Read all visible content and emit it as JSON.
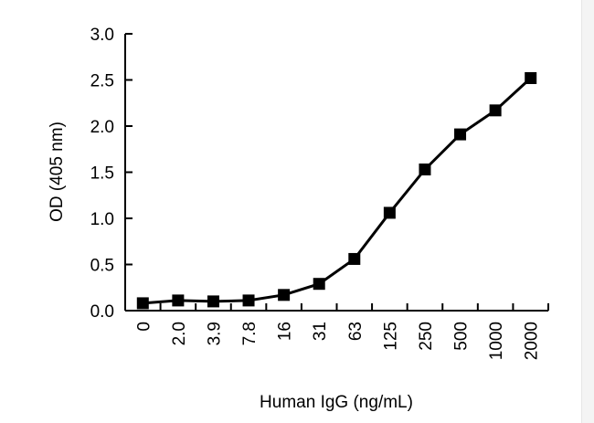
{
  "chart_data": {
    "type": "line",
    "xlabel": "Human IgG (ng/mL)",
    "ylabel": "OD (405 nm)",
    "categories": [
      "0",
      "2.0",
      "3.9",
      "7.8",
      "16",
      "31",
      "63",
      "125",
      "250",
      "500",
      "1000",
      "2000"
    ],
    "values": [
      0.08,
      0.11,
      0.1,
      0.11,
      0.17,
      0.29,
      0.56,
      1.06,
      1.53,
      1.91,
      2.17,
      2.52
    ],
    "ylim": [
      0,
      3.0
    ],
    "yticks": [
      "0.0",
      "0.5",
      "1.0",
      "1.5",
      "2.0",
      "2.5",
      "3.0"
    ],
    "grid": false,
    "marker": "square",
    "color": "#000000"
  }
}
